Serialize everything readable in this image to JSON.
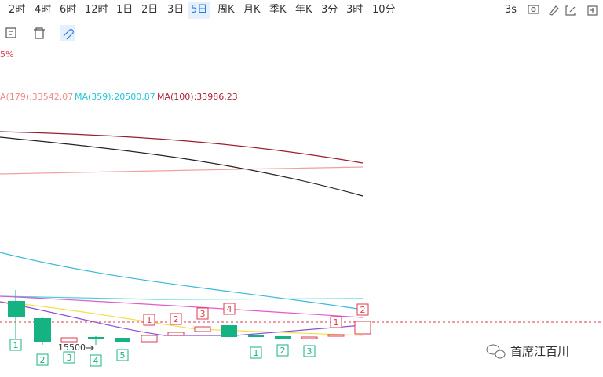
{
  "toolbar": {
    "intervals": [
      "2时",
      "4时",
      "6时",
      "12时",
      "1日",
      "2日",
      "3日",
      "5日",
      "周K",
      "月K",
      "季K",
      "年K",
      "3分",
      "3时",
      "10分"
    ],
    "active_index": 7,
    "refresh": "3s"
  },
  "legend": {
    "top_fragment": "5%",
    "ma": [
      {
        "label": "A(179):33542.07",
        "color": "#f08a8a"
      },
      {
        "label": "MA(359):20500.87",
        "color": "#26c6da"
      },
      {
        "label": "MA(100):33986.23",
        "color": "#b0213a"
      }
    ]
  },
  "markers": [
    {
      "label": "1",
      "color": "#16b382"
    },
    {
      "label": "2",
      "color": "#16b382"
    },
    {
      "label": "3",
      "color": "#16b382"
    },
    {
      "label": "4",
      "color": "#16b382"
    },
    {
      "label": "5",
      "color": "#16b382"
    },
    {
      "label": "1",
      "color": "#e0394f"
    },
    {
      "label": "2",
      "color": "#e0394f"
    },
    {
      "label": "3",
      "color": "#e0394f"
    },
    {
      "label": "4",
      "color": "#e0394f"
    },
    {
      "label": "1",
      "color": "#16b382"
    },
    {
      "label": "2",
      "color": "#16b382"
    },
    {
      "label": "3",
      "color": "#16b382"
    },
    {
      "label": "1",
      "color": "#e0394f"
    },
    {
      "label": "2",
      "color": "#e0394f"
    }
  ],
  "price_label": "15500",
  "watermark": "首席江百川"
}
